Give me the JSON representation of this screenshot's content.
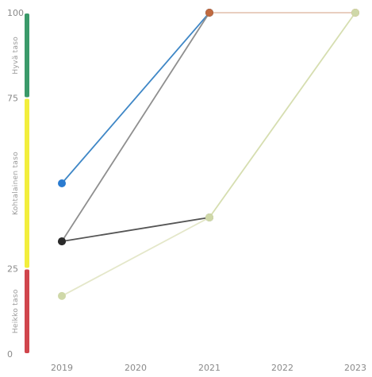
{
  "chart_data": {
    "type": "line",
    "x_categories": [
      "2019",
      "2020",
      "2021",
      "2022",
      "2023"
    ],
    "y_ticks": [
      "100",
      "75",
      "25",
      "0"
    ],
    "ylim": [
      0,
      100
    ],
    "grid": false,
    "legend": "none",
    "bands": [
      {
        "label": "Hyvä taso",
        "from": 75,
        "to": 100,
        "color": "#3a9a6a"
      },
      {
        "label": "Kohtalainen taso",
        "from": 25,
        "to": 75,
        "color": "#f2ee3c"
      },
      {
        "label": "Heikko taso",
        "from": 0,
        "to": 25,
        "color": "#d0454c"
      }
    ],
    "series": [
      {
        "color": "#3f87c6",
        "marker": "#2a7bd0",
        "points": [
          {
            "x": "2019",
            "y": 50
          },
          {
            "x": "2021",
            "y": 100
          }
        ]
      },
      {
        "color": "#8f8f8f",
        "marker": "#2a2a2a",
        "points": [
          {
            "x": "2019",
            "y": 33
          },
          {
            "x": "2021",
            "y": 100
          }
        ]
      },
      {
        "color": "#555555",
        "marker": "#2a2a2a",
        "points": [
          {
            "x": "2019",
            "y": 33
          },
          {
            "x": "2021",
            "y": 40
          }
        ]
      },
      {
        "color": "#e4e7c9",
        "marker": "#cfd8a8",
        "points": [
          {
            "x": "2019",
            "y": 17
          },
          {
            "x": "2021",
            "y": 40
          }
        ]
      },
      {
        "color": "#d6deb0",
        "marker": "#cfd8a8",
        "points": [
          {
            "x": "2021",
            "y": 40
          },
          {
            "x": "2023",
            "y": 100
          }
        ]
      },
      {
        "color": "#e6c8b6",
        "marker": "#c06a40",
        "points": [
          {
            "x": "2021",
            "y": 100
          },
          {
            "x": "2023",
            "y": 100
          }
        ]
      }
    ],
    "extra_points": [
      {
        "x": "2023",
        "y": 100,
        "color": "#cfd8a8"
      }
    ]
  }
}
